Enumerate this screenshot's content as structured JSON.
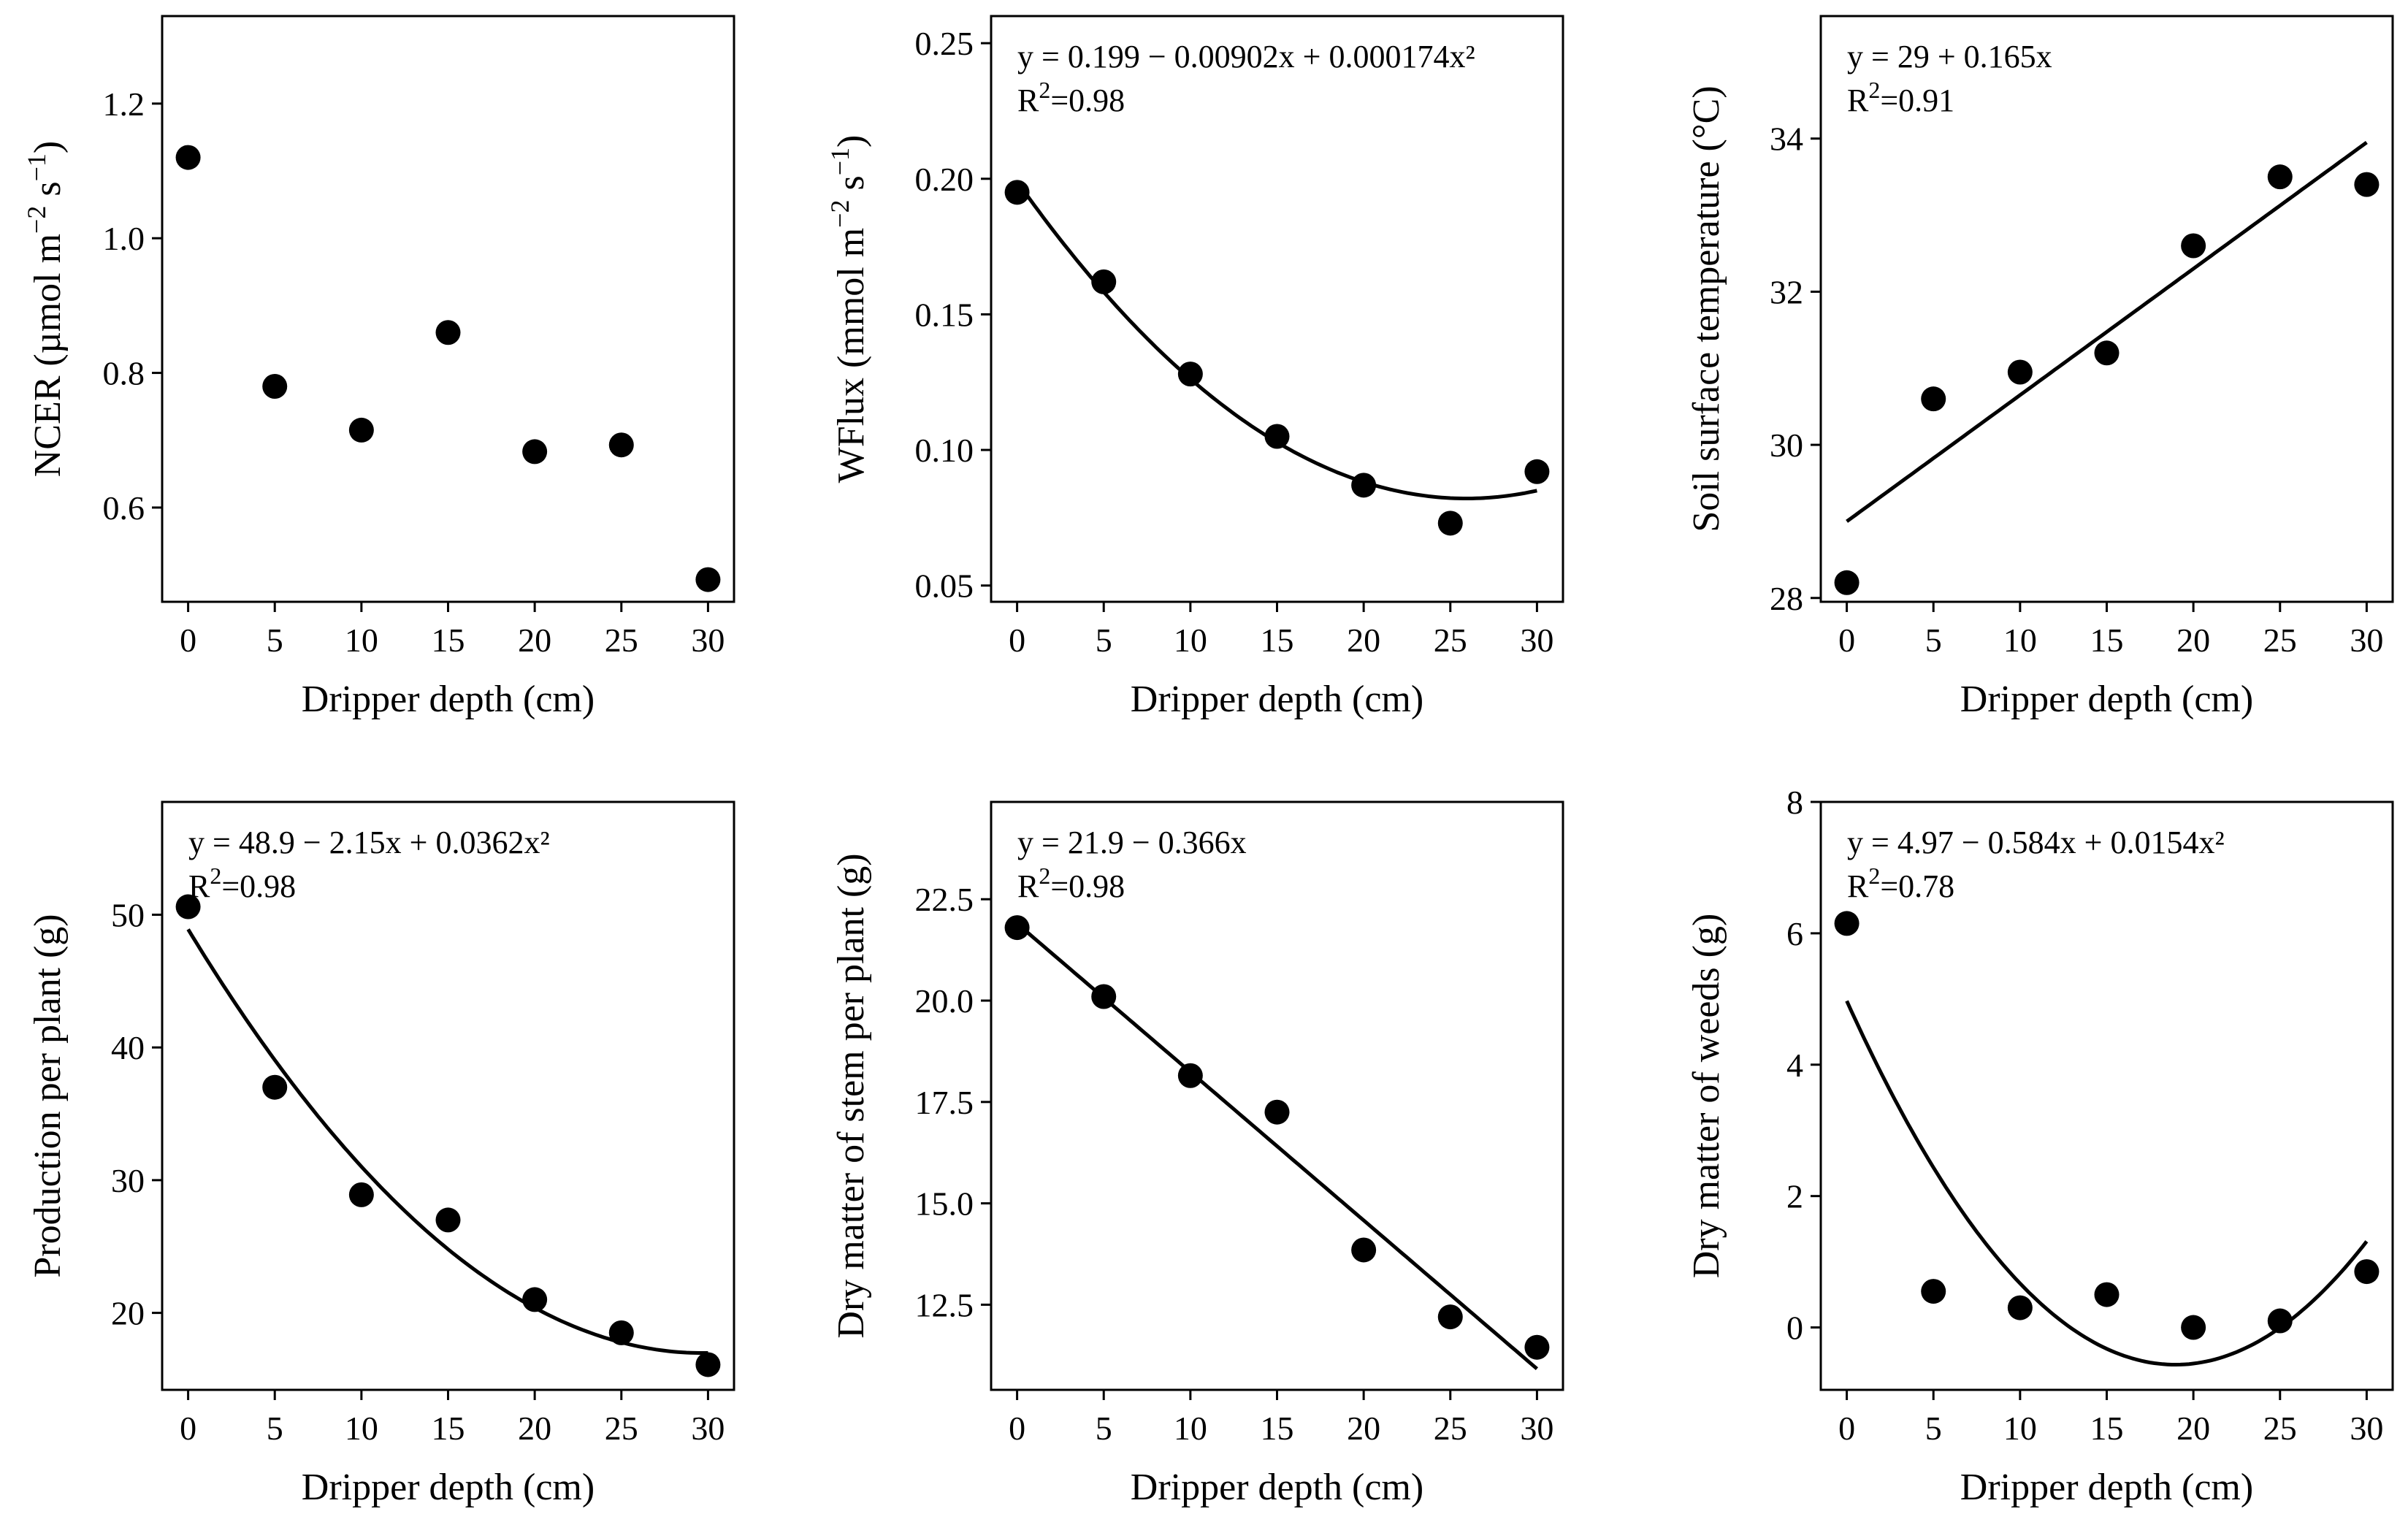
{
  "figure": {
    "background": "#ffffff",
    "ink": "#000000"
  },
  "chart_data": [
    {
      "id": "ncer",
      "type": "scatter",
      "xlabel": "Dripper depth (cm)",
      "ylabel": {
        "main": "NCER  (µmol m",
        "exp1": "−2",
        "mid": " s",
        "exp2": "−1",
        "close": ")"
      },
      "x": [
        0,
        5,
        10,
        15,
        20,
        25,
        30
      ],
      "y": [
        1.12,
        0.78,
        0.715,
        0.86,
        0.683,
        0.693,
        0.493
      ],
      "xticks": [
        "0",
        "5",
        "10",
        "15",
        "20",
        "25",
        "30"
      ],
      "yticks": [
        "0.6",
        "0.8",
        "1.0",
        "1.2"
      ],
      "xlim": [
        -1.5,
        31.5
      ],
      "ylim": [
        0.46,
        1.33
      ],
      "fit": null,
      "equation": null,
      "r2": null
    },
    {
      "id": "wflux",
      "type": "scatter",
      "xlabel": "Dripper depth (cm)",
      "ylabel": {
        "main": "WFlux (mmol m",
        "exp1": "−2",
        "mid": " s",
        "exp2": "−1",
        "close": ")"
      },
      "x": [
        0,
        5,
        10,
        15,
        20,
        25,
        30
      ],
      "y": [
        0.195,
        0.162,
        0.128,
        0.105,
        0.087,
        0.073,
        0.092
      ],
      "xticks": [
        "0",
        "5",
        "10",
        "15",
        "20",
        "25",
        "30"
      ],
      "yticks": [
        "0.05",
        "0.10",
        "0.15",
        "0.20",
        "0.25"
      ],
      "xlim": [
        -1.5,
        31.5
      ],
      "ylim": [
        0.044,
        0.26
      ],
      "fit": [
        0.199,
        -0.00902,
        0.000174
      ],
      "equation": "y = 0.199 − 0.00902x + 0.000174x²",
      "r2": {
        "pre": "R",
        "sup": "2",
        "post": "=0.98"
      }
    },
    {
      "id": "soil-temp",
      "type": "scatter",
      "xlabel": "Dripper depth (cm)",
      "ylabel": {
        "main": "Soil surface temperature  (°C)"
      },
      "x": [
        0,
        5,
        10,
        15,
        20,
        25,
        30
      ],
      "y": [
        28.2,
        30.6,
        30.95,
        31.2,
        32.6,
        33.5,
        33.4
      ],
      "xticks": [
        "0",
        "5",
        "10",
        "15",
        "20",
        "25",
        "30"
      ],
      "yticks": [
        "28",
        "30",
        "32",
        "34"
      ],
      "xlim": [
        -1.5,
        31.5
      ],
      "ylim": [
        27.95,
        35.6
      ],
      "fit": [
        29,
        0.165
      ],
      "equation": "y = 29 + 0.165x",
      "r2": {
        "pre": "R",
        "sup": "2",
        "post": "=0.91"
      }
    },
    {
      "id": "production",
      "type": "scatter",
      "xlabel": "Dripper depth (cm)",
      "ylabel": {
        "main": "Production per plant  (g)"
      },
      "x": [
        0,
        5,
        10,
        15,
        20,
        25,
        30
      ],
      "y": [
        50.6,
        37.0,
        28.9,
        27.0,
        21.0,
        18.5,
        16.1
      ],
      "xticks": [
        "0",
        "5",
        "10",
        "15",
        "20",
        "25",
        "30"
      ],
      "yticks": [
        "20",
        "30",
        "40",
        "50"
      ],
      "xlim": [
        -1.5,
        31.5
      ],
      "ylim": [
        14.2,
        58.5
      ],
      "fit": [
        48.9,
        -2.15,
        0.0362
      ],
      "equation": "y = 48.9 − 2.15x + 0.0362x²",
      "r2": {
        "pre": "R",
        "sup": "2",
        "post": "=0.98"
      }
    },
    {
      "id": "stem-dry-matter",
      "type": "scatter",
      "xlabel": "Dripper depth (cm)",
      "ylabel": {
        "main": "Dry matter of stem per plant  (g)"
      },
      "x": [
        0,
        5,
        10,
        15,
        20,
        25,
        30
      ],
      "y": [
        21.8,
        20.1,
        18.15,
        17.25,
        13.85,
        12.2,
        11.45
      ],
      "xticks": [
        "0",
        "5",
        "10",
        "15",
        "20",
        "25",
        "30"
      ],
      "yticks": [
        "12.5",
        "15.0",
        "17.5",
        "20.0",
        "22.5"
      ],
      "xlim": [
        -1.5,
        31.5
      ],
      "ylim": [
        10.4,
        24.9
      ],
      "fit": [
        21.9,
        -0.366
      ],
      "equation": "y = 21.9 − 0.366x",
      "r2": {
        "pre": "R",
        "sup": "2",
        "post": "=0.98"
      }
    },
    {
      "id": "weeds-dry-matter",
      "type": "scatter",
      "xlabel": "Dripper depth (cm)",
      "ylabel": {
        "main": "Dry matter of weeds  (g)"
      },
      "x": [
        0,
        5,
        10,
        15,
        20,
        25,
        30
      ],
      "y": [
        6.15,
        0.55,
        0.3,
        0.5,
        0.0,
        0.1,
        0.85
      ],
      "xticks": [
        "0",
        "5",
        "10",
        "15",
        "20",
        "25",
        "30"
      ],
      "yticks": [
        "0",
        "2",
        "4",
        "6",
        "8"
      ],
      "xlim": [
        -1.5,
        31.5
      ],
      "ylim": [
        -0.95,
        8.0
      ],
      "fit": [
        4.97,
        -0.584,
        0.0154
      ],
      "equation": "y = 4.97 − 0.584x + 0.0154x²",
      "r2": {
        "pre": "R",
        "sup": "2",
        "post": "=0.78"
      }
    }
  ]
}
